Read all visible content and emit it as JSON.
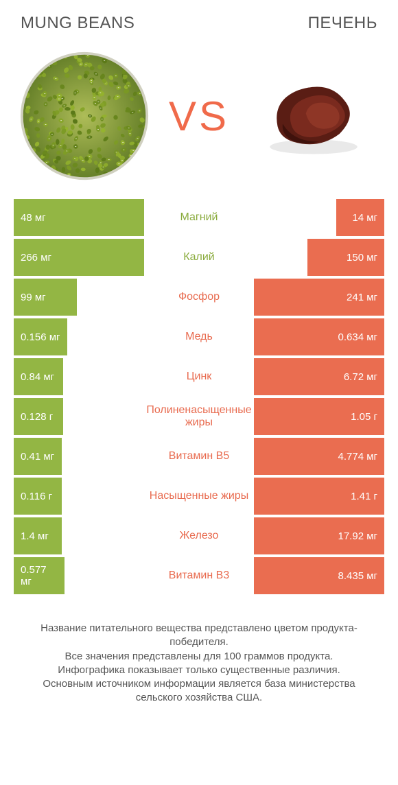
{
  "colors": {
    "green": "#93b644",
    "orange": "#ea6d50",
    "text": "#555555",
    "bg": "#ffffff"
  },
  "header": {
    "left_title": "MUNG BEANS",
    "right_title": "ПЕЧЕНЬ",
    "vs": "VS"
  },
  "max_bar_width": 190,
  "min_bar_width": 70,
  "rows": [
    {
      "nutrient": "Магний",
      "winner": "left",
      "left_val": "48 мг",
      "right_val": "14 мг",
      "left_w": 190,
      "right_w": 70
    },
    {
      "nutrient": "Калий",
      "winner": "left",
      "left_val": "266 мг",
      "right_val": "150 мг",
      "left_w": 190,
      "right_w": 112
    },
    {
      "nutrient": "Фосфор",
      "winner": "right",
      "left_val": "99 мг",
      "right_val": "241 мг",
      "left_w": 92,
      "right_w": 190
    },
    {
      "nutrient": "Медь",
      "winner": "right",
      "left_val": "0.156 мг",
      "right_val": "0.634 мг",
      "left_w": 78,
      "right_w": 190
    },
    {
      "nutrient": "Цинк",
      "winner": "right",
      "left_val": "0.84 мг",
      "right_val": "6.72 мг",
      "left_w": 72,
      "right_w": 190
    },
    {
      "nutrient": "Полиненасыщенные жиры",
      "winner": "right",
      "left_val": "0.128 г",
      "right_val": "1.05 г",
      "left_w": 72,
      "right_w": 190
    },
    {
      "nutrient": "Витамин B5",
      "winner": "right",
      "left_val": "0.41 мг",
      "right_val": "4.774 мг",
      "left_w": 70,
      "right_w": 190
    },
    {
      "nutrient": "Насыщенные жиры",
      "winner": "right",
      "left_val": "0.116 г",
      "right_val": "1.41 г",
      "left_w": 70,
      "right_w": 190
    },
    {
      "nutrient": "Железо",
      "winner": "right",
      "left_val": "1.4 мг",
      "right_val": "17.92 мг",
      "left_w": 70,
      "right_w": 190
    },
    {
      "nutrient": "Витамин B3",
      "winner": "right",
      "left_val": "0.577 мг",
      "right_val": "8.435 мг",
      "left_w": 74,
      "right_w": 190
    }
  ],
  "footnote": [
    "Название питательного вещества представлено цветом продукта-победителя.",
    "Все значения представлены для 100 граммов продукта.",
    "Инфографика показывает только существенные различия.",
    "Основным источником информации является база министерства сельского хозяйства США."
  ]
}
